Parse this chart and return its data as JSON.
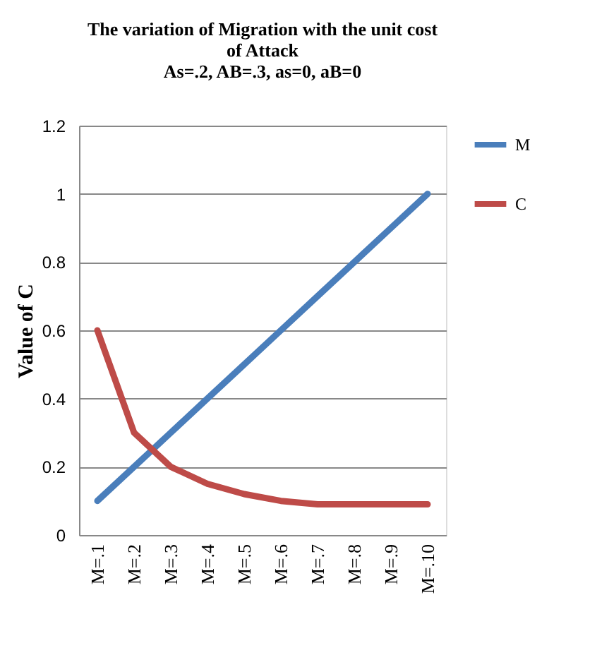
{
  "chart_data": {
    "type": "line",
    "title": [
      "The variation  of Migration  with the unit cost",
      "of Attack",
      "As=.2, AB=.3, as=0, aB=0"
    ],
    "ylabel": "Value of C",
    "categories": [
      "M=.1",
      "M=.2",
      "M=.3",
      "M=.4",
      "M=.5",
      "M=.6",
      "M=.7",
      "M=.8",
      "M=.9",
      "M=.10"
    ],
    "series": [
      {
        "name": "M",
        "color": "#4a7ebb",
        "values": [
          0.1,
          0.2,
          0.3,
          0.4,
          0.5,
          0.6,
          0.7,
          0.8,
          0.9,
          1.0
        ]
      },
      {
        "name": "C",
        "color": "#be4b48",
        "values": [
          0.6,
          0.3,
          0.2,
          0.15,
          0.12,
          0.1,
          0.09,
          0.09,
          0.09,
          0.09
        ]
      }
    ],
    "ylim": [
      0,
      1.2
    ],
    "yticks": [
      0,
      0.2,
      0.4,
      0.6,
      0.8,
      1,
      1.2
    ],
    "grid": "y",
    "legend": "right",
    "marker": "none",
    "line_style": "solid"
  }
}
